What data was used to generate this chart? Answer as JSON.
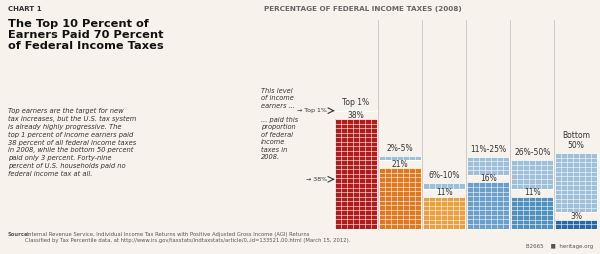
{
  "chart_label": "CHART 1",
  "title_lines": [
    "The Top 10 Percent of",
    "Earners Paid 70 Percent",
    "of Federal Income Taxes"
  ],
  "body_text": "Top earners are the target for new\ntax increases, but the U.S. tax system\nis already highly progressive. The\ntop 1 percent of income earners paid\n38 percent of all federal income taxes\nin 2008, while the bottom 50 percent\npaid only 3 percent. Forty-nine\npercent of U.S. households paid no\nfederal income tax at all.",
  "source_text_bold": "Source:",
  "source_text_rest": " Internal Revenue Service, Individual Income Tax Returns with Positive Adjusted Gross Income (AGI) Returns\nClassified by Tax Percentile data, at http://www.irs.gov/taxstats/indtaxstats/article/0,,id=133521,00.html (March 15, 2012).",
  "footer_right": "B2665    ■  heritage.org",
  "chart_title": "PERCENTAGE OF FEDERAL INCOME TAXES (2008)",
  "categories": [
    "Top 1%",
    "2%-5%",
    "6%-10%",
    "11%-25%",
    "26%-50%",
    "Bottom\n50%"
  ],
  "income_sizes": [
    1,
    4,
    5,
    15,
    25,
    50
  ],
  "tax_pcts": [
    38,
    21,
    11,
    16,
    11,
    3
  ],
  "tax_colors": [
    "#b01c1c",
    "#e07820",
    "#e8a040",
    "#6a9fc8",
    "#5090bc",
    "#2868a8"
  ],
  "income_color": "#9dbfd8",
  "bg_color": "#f7f3ec",
  "grid_color": "#ffffff",
  "annotation_label1": "This level\nof income\nearners ...",
  "annotation_label2": "... paid this\nproportion\nof federal\nincome\ntaxes in\n2008.",
  "sep_color": "#cccccc",
  "text_color": "#333333",
  "title_color": "#111111",
  "source_color": "#555555"
}
